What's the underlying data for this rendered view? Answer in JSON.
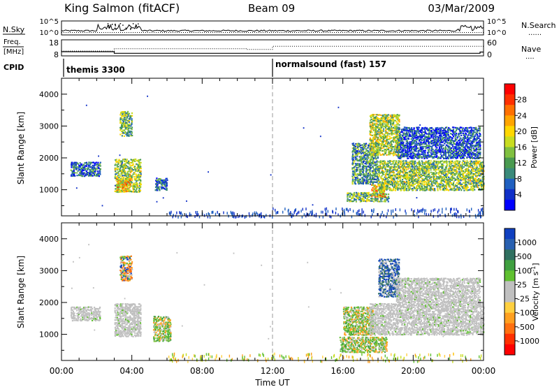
{
  "header": {
    "station": "King Salmon (fitACF)",
    "beam": "Beam 09",
    "date": "03/Mar/2009"
  },
  "nsky_panel": {
    "left_label": "N.Sky",
    "right_label": "N.Search",
    "right_label_dots": "......",
    "left_ticks": [
      "10^5",
      "10^0"
    ],
    "right_ticks": [
      "10^5",
      "10^0"
    ]
  },
  "freq_panel": {
    "left_label_line1": "Freq.",
    "left_label_line2": "[MHz]",
    "right_label": "Nave",
    "right_label_dots": "....",
    "left_ticks": [
      "18",
      "8"
    ],
    "right_ticks": [
      "60",
      "0"
    ],
    "freq_steps": [
      {
        "from": 0.0,
        "to": 3.0,
        "mhz": 10.6
      },
      {
        "from": 3.0,
        "to": 23.8,
        "mhz": 9.6
      },
      {
        "from": 23.8,
        "to": 24.0,
        "mhz": 10.4
      }
    ],
    "nave_steps": [
      {
        "from": 0.0,
        "to": 3.0,
        "nave": 18
      },
      {
        "from": 3.0,
        "to": 10.5,
        "nave": 27
      },
      {
        "from": 10.5,
        "to": 12.0,
        "nave": 24
      },
      {
        "from": 12.0,
        "to": 24.0,
        "nave": 36
      }
    ]
  },
  "cpid": {
    "label": "CPID",
    "segments": [
      {
        "name": "themis 3300",
        "start": 0.0
      },
      {
        "name": "normalsound (fast) 157",
        "start": 12.0
      }
    ]
  },
  "chart_data": [
    {
      "type": "heatmap",
      "name": "Power",
      "ylabel": "Slant Range [km]",
      "xlabel": "",
      "xlim": [
        0,
        24
      ],
      "ylim": [
        180,
        4500
      ],
      "yticks": [
        1000,
        2000,
        3000,
        4000
      ],
      "colorbar": {
        "label": "Power [dB]",
        "ticks": [
          "4",
          "8",
          "12",
          "16",
          "20",
          "24",
          "28"
        ],
        "colors": [
          "#0000ff",
          "#1030c8",
          "#2060c0",
          "#3a8a7a",
          "#4a9a50",
          "#80c040",
          "#c8dc20",
          "#ffd700",
          "#ffa500",
          "#ff7000",
          "#ff3000",
          "#ff0000"
        ]
      },
      "regions": [
        {
          "t": [
            0.5,
            2.2
          ],
          "r": [
            1450,
            1900
          ],
          "level": 0.25
        },
        {
          "t": [
            3.0,
            4.5
          ],
          "r": [
            950,
            2000
          ],
          "level": 0.5
        },
        {
          "t": [
            3.1,
            3.9
          ],
          "r": [
            950,
            1400
          ],
          "level": 0.7
        },
        {
          "t": [
            3.3,
            4.0
          ],
          "r": [
            2700,
            3500
          ],
          "level": 0.45
        },
        {
          "t": [
            5.3,
            6.0
          ],
          "r": [
            1000,
            1400
          ],
          "level": 0.25
        },
        {
          "t": [
            16.2,
            18.6
          ],
          "r": [
            650,
            950
          ],
          "level": 0.45
        },
        {
          "t": [
            17.6,
            18.4
          ],
          "r": [
            800,
            1200
          ],
          "level": 0.7
        },
        {
          "t": [
            16.5,
            18.0
          ],
          "r": [
            1200,
            2500
          ],
          "level": 0.35
        },
        {
          "t": [
            18.0,
            24.0
          ],
          "r": [
            1000,
            1950
          ],
          "level": 0.5
        },
        {
          "t": [
            19.0,
            23.8
          ],
          "r": [
            2000,
            3000
          ],
          "level": 0.2
        },
        {
          "t": [
            17.5,
            19.2
          ],
          "r": [
            2100,
            3400
          ],
          "level": 0.55
        }
      ],
      "ground_scatter": {
        "t": [
          6.0,
          24.0
        ],
        "r": [
          180,
          450
        ]
      },
      "midnight_marker": 12.0
    },
    {
      "type": "heatmap",
      "name": "Velocity",
      "ylabel": "Slant Range [km]",
      "xlabel": "Time UT",
      "xlim": [
        0,
        24
      ],
      "ylim": [
        180,
        4500
      ],
      "yticks": [
        1000,
        2000,
        3000,
        4000
      ],
      "xticks": [
        "00:00",
        "04:00",
        "08:00",
        "12:00",
        "16:00",
        "20:00",
        "00:00"
      ],
      "colorbar": {
        "label": "Velocity [m s^-1]",
        "ticks": [
          "1000",
          "500",
          "100",
          "25",
          "-25",
          "-100",
          "-500",
          "-1000"
        ],
        "colors": [
          "#1040c0",
          "#2860b0",
          "#307060",
          "#40a040",
          "#60c030",
          "#c0c0c0",
          "#c0c0c0",
          "#ffd040",
          "#ffa020",
          "#ff7010",
          "#ff3000",
          "#ff0000"
        ]
      },
      "regions": [
        {
          "t": [
            0.5,
            2.2
          ],
          "r": [
            1450,
            1900
          ],
          "kind": "gs"
        },
        {
          "t": [
            3.0,
            4.5
          ],
          "r": [
            950,
            2000
          ],
          "kind": "gs"
        },
        {
          "t": [
            3.3,
            4.0
          ],
          "r": [
            2700,
            3500
          ],
          "kind": "mix"
        },
        {
          "t": [
            5.2,
            6.2
          ],
          "r": [
            800,
            1600
          ],
          "kind": "pos"
        },
        {
          "t": [
            15.8,
            18.5
          ],
          "r": [
            450,
            950
          ],
          "kind": "pos"
        },
        {
          "t": [
            16.0,
            17.7
          ],
          "r": [
            1000,
            1900
          ],
          "kind": "pos"
        },
        {
          "t": [
            17.5,
            24.0
          ],
          "r": [
            1000,
            2000
          ],
          "kind": "gs"
        },
        {
          "t": [
            18.0,
            19.2
          ],
          "r": [
            2200,
            3400
          ],
          "kind": "neg"
        },
        {
          "t": [
            19.0,
            23.8
          ],
          "r": [
            2000,
            2800
          ],
          "kind": "gs"
        }
      ],
      "midnight_marker": 12.0
    }
  ]
}
